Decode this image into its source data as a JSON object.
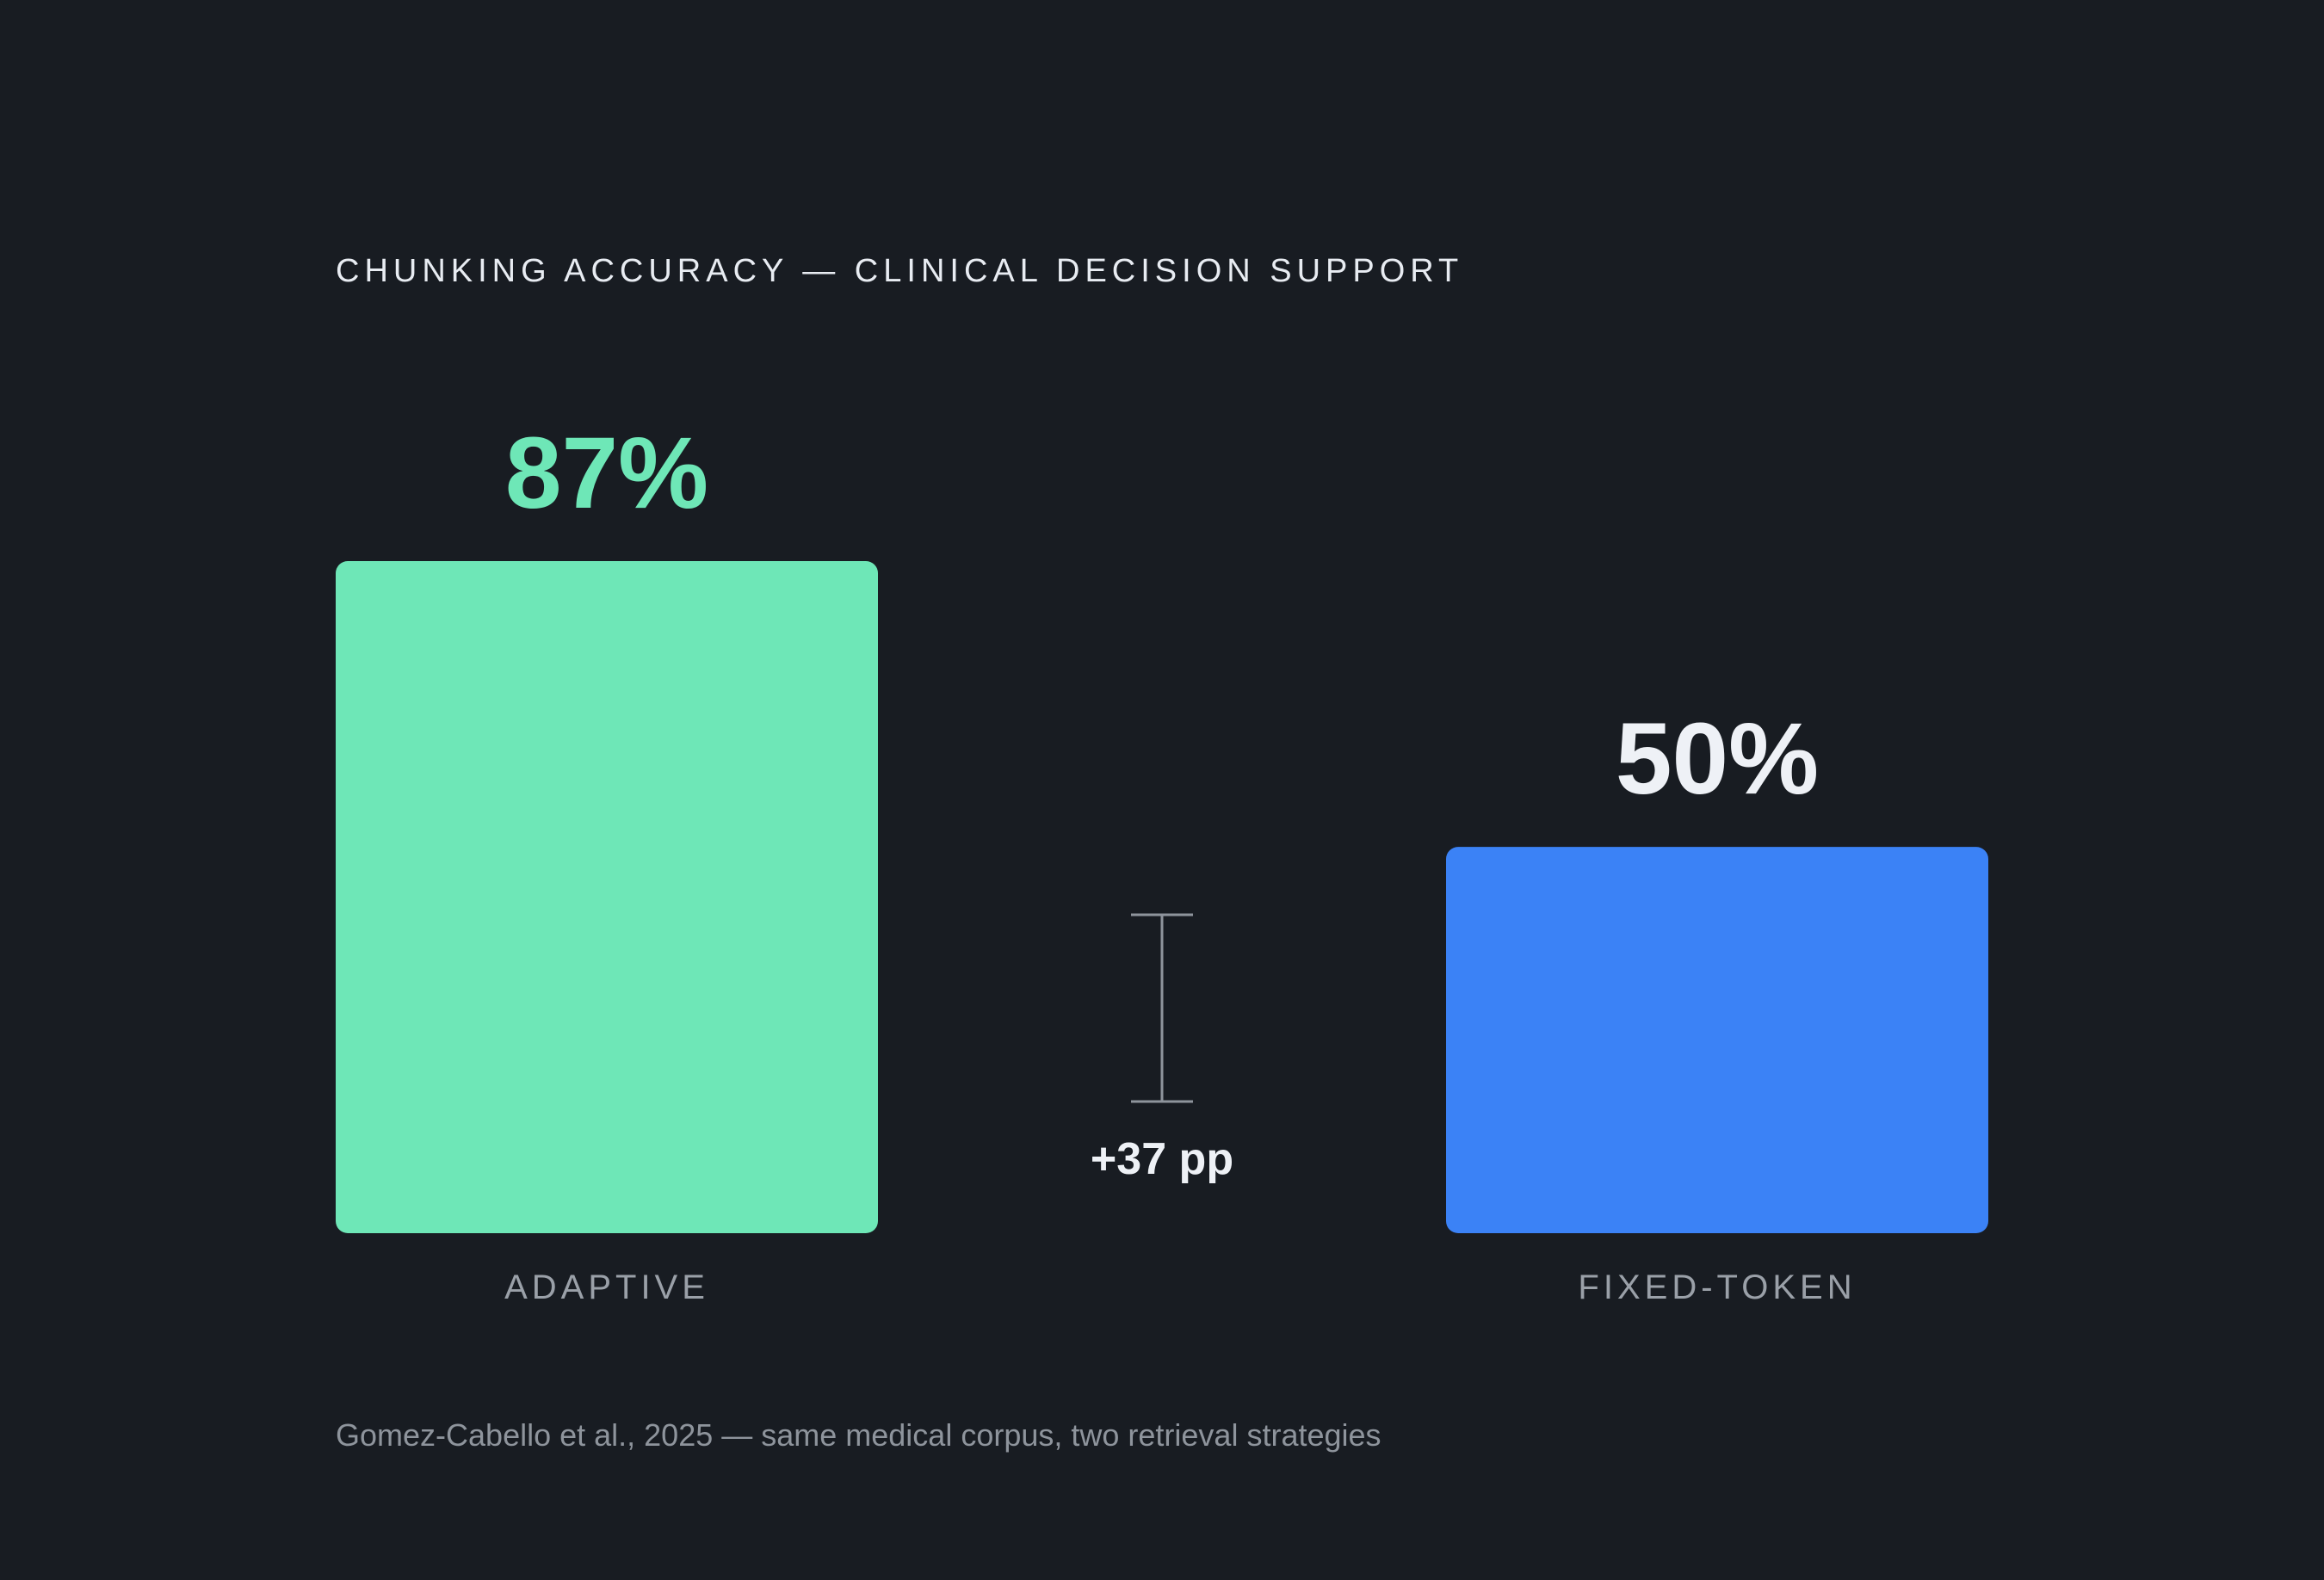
{
  "chart_data": {
    "type": "bar",
    "title": "CHUNKING ACCURACY — CLINICAL DECISION SUPPORT",
    "categories": [
      "ADAPTIVE",
      "FIXED-TOKEN"
    ],
    "values": [
      87,
      50
    ],
    "value_labels": [
      "87%",
      "50%"
    ],
    "colors": [
      "#6ee7b7",
      "#3b82f6"
    ],
    "value_label_colors": [
      "#6ee7b7",
      "#eef1f6"
    ],
    "ylim": [
      0,
      100
    ],
    "grid": false,
    "legend": "none",
    "annotation": {
      "text": "+37 pp",
      "from_value": 50,
      "to_value": 87,
      "color": "#8e949c"
    }
  },
  "source": "Gomez-Cabello et al., 2025 — same medical corpus, two retrieval strategies",
  "colors": {
    "background": "#181c22",
    "title": "#e8ecf2",
    "category_label": "#9aa0a8",
    "annotation_text": "#eef1f6",
    "source_text": "#8e949c"
  }
}
